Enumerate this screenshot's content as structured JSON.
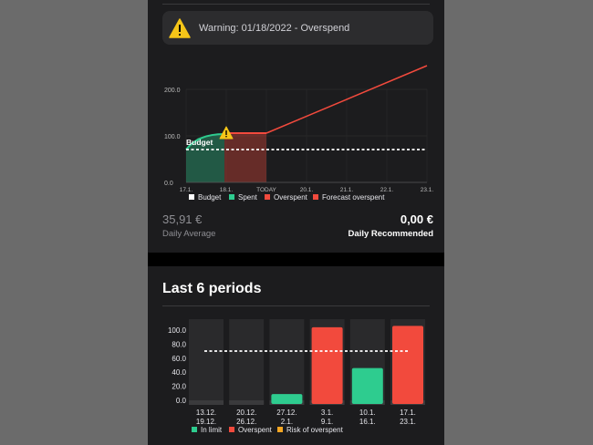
{
  "warning": {
    "text": "Warning: 01/18/2022 - Overspend"
  },
  "current_chart": {
    "y_ticks": [
      "200.0",
      "100.0",
      "0.0"
    ],
    "x_ticks": [
      "17.1.",
      "18.1.",
      "TODAY",
      "20.1.",
      "21.1.",
      "22.1.",
      "23.1."
    ],
    "budget_label": "Budget",
    "legend": [
      "Budget",
      "Spent",
      "Overspent",
      "Forecast overspent"
    ]
  },
  "stats": {
    "daily_average_value": "35,91 €",
    "daily_average_label": "Daily Average",
    "daily_recommended_value": "0,00 €",
    "daily_recommended_label": "Daily Recommended"
  },
  "periods": {
    "title": "Last 6 periods",
    "y_ticks": [
      "100.0",
      "80.0",
      "60.0",
      "40.0",
      "20.0",
      "0.0"
    ],
    "legend": [
      "In limit",
      "Overspent",
      "Risk of overspent"
    ]
  },
  "colors": {
    "spent": "#2ecc8f",
    "overspent": "#f24a3d",
    "risk": "#f5a623",
    "budget": "#ffffff"
  },
  "chart_data": [
    {
      "type": "area",
      "x": [
        "17.1.",
        "18.1.",
        "TODAY",
        "20.1.",
        "21.1.",
        "22.1.",
        "23.1."
      ],
      "budget": 70,
      "series": [
        {
          "name": "Spent",
          "x": [
            "17.1.",
            "18.1."
          ],
          "values": [
            70,
            108
          ]
        },
        {
          "name": "Overspent",
          "x": [
            "18.1.",
            "TODAY"
          ],
          "values": [
            108,
            108
          ]
        },
        {
          "name": "Forecast overspent",
          "x": [
            "TODAY",
            "23.1."
          ],
          "values": [
            108,
            250
          ]
        }
      ],
      "ylim": [
        0,
        250
      ]
    },
    {
      "type": "bar",
      "categories": [
        [
          "13.12.",
          "19.12."
        ],
        [
          "20.12.",
          "26.12."
        ],
        [
          "27.12.",
          "2.1."
        ],
        [
          "3.1.",
          "9.1."
        ],
        [
          "10.1.",
          "16.1."
        ],
        [
          "17.1.",
          "23.1."
        ]
      ],
      "values": [
        0,
        0,
        9,
        104,
        46,
        106
      ],
      "status": [
        "In limit",
        "In limit",
        "In limit",
        "Overspent",
        "In limit",
        "Overspent"
      ],
      "budget": 70,
      "ylim": [
        0,
        110
      ]
    }
  ]
}
